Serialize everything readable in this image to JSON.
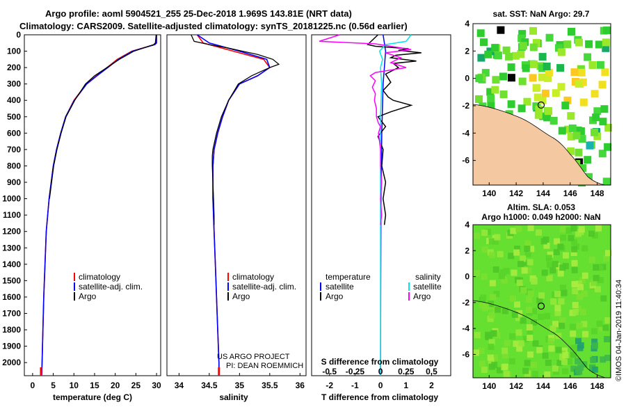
{
  "header": {
    "line1": "Argo profile: aoml 5904521_255 25-Dec-2018 1.969S 143.81E (NRT data)",
    "line2": "Climatology: CARS2009. Satellite-adjusted climatology: synTS_20181225.nc (0.56d earlier)"
  },
  "colors": {
    "climatology": "#ff0000",
    "satellite": "#0000ff",
    "argo": "#000000",
    "sat_salinity": "#00e5ee",
    "argo_salinity": "#ff00ff",
    "land": "#f4c8a0"
  },
  "depth_axis": {
    "ticks": [
      0,
      100,
      200,
      300,
      400,
      500,
      600,
      700,
      800,
      900,
      1000,
      1100,
      1200,
      1300,
      1400,
      1500,
      1600,
      1700,
      1800,
      1900,
      2000
    ]
  },
  "chart_data": [
    {
      "type": "line",
      "xlabel": "temperature (deg C)",
      "x_ticks": [
        "0",
        "5",
        "10",
        "15",
        "20",
        "25",
        "30"
      ],
      "xlim": [
        -2,
        31
      ],
      "ylim": [
        2080,
        0
      ],
      "legend": [
        "climatology",
        "satellite-adj. clim.",
        "Argo"
      ],
      "series": [
        {
          "name": "climatology",
          "depth": [
            0,
            50,
            60,
            100,
            150,
            200,
            250,
            300,
            400,
            500,
            600,
            700,
            800,
            1000,
            1200,
            1400,
            1600,
            1800,
            2000,
            2080
          ],
          "values": [
            29.9,
            29.9,
            29.5,
            24.0,
            20.5,
            18.0,
            15.5,
            13.0,
            10.0,
            8.0,
            6.8,
            5.8,
            5.0,
            4.0,
            3.3,
            3.0,
            2.7,
            2.5,
            2.3,
            2.2
          ]
        },
        {
          "name": "satellite-adj. clim.",
          "depth": [
            0,
            50,
            60,
            100,
            150,
            200,
            250,
            300,
            400,
            500,
            600,
            700,
            800,
            1000,
            1200,
            1400,
            1600,
            1800,
            2000,
            2080
          ],
          "values": [
            30.0,
            30.0,
            29.6,
            24.2,
            20.8,
            18.2,
            15.6,
            13.1,
            10.1,
            8.0,
            6.8,
            5.8,
            5.0,
            4.0,
            3.3,
            3.0,
            2.7,
            2.5,
            2.3,
            2.2
          ]
        },
        {
          "name": "Argo",
          "depth": [
            0,
            50,
            60,
            100,
            150,
            200,
            250,
            300,
            400,
            500,
            600,
            700,
            800,
            900,
            1000
          ],
          "values": [
            29.9,
            29.7,
            29.3,
            24.5,
            21.0,
            18.0,
            15.0,
            12.8,
            10.2,
            8.1,
            6.9,
            5.9,
            5.1,
            4.6,
            4.1
          ]
        }
      ]
    },
    {
      "type": "line",
      "xlabel": "salinity",
      "x_ticks": [
        "34",
        "34.5",
        "35",
        "35.5",
        "36"
      ],
      "xlim": [
        33.8,
        36.1
      ],
      "ylim": [
        2080,
        0
      ],
      "legend": [
        "climatology",
        "satellite-adj. clim.",
        "Argo"
      ],
      "series": [
        {
          "name": "climatology",
          "depth": [
            0,
            50,
            100,
            150,
            200,
            250,
            300,
            400,
            500,
            600,
            700,
            800,
            1000,
            1200,
            1400,
            1600,
            1800,
            2000,
            2080
          ],
          "values": [
            34.3,
            34.4,
            34.9,
            35.4,
            35.5,
            35.3,
            35.0,
            34.82,
            34.72,
            34.64,
            34.58,
            34.56,
            34.56,
            34.58,
            34.6,
            34.62,
            34.64,
            34.66,
            34.66
          ]
        },
        {
          "name": "satellite-adj. clim.",
          "depth": [
            0,
            50,
            100,
            150,
            200,
            250,
            300,
            400,
            500,
            600,
            700,
            800,
            1000,
            1200,
            1400,
            1600,
            1800,
            2000,
            2080
          ],
          "values": [
            34.3,
            34.5,
            35.0,
            35.45,
            35.5,
            35.3,
            35.0,
            34.82,
            34.72,
            34.64,
            34.58,
            34.56,
            34.56,
            34.58,
            34.6,
            34.62,
            34.64,
            34.66,
            34.66
          ]
        },
        {
          "name": "Argo",
          "depth": [
            0,
            40,
            60,
            80,
            100,
            120,
            150,
            180,
            200,
            250,
            300,
            400,
            500,
            600,
            700,
            740,
            800,
            900,
            1000,
            1100,
            1160
          ],
          "values": [
            34.2,
            34.25,
            34.5,
            34.8,
            35.05,
            35.3,
            35.55,
            35.65,
            35.5,
            35.2,
            34.98,
            34.82,
            34.7,
            34.62,
            34.56,
            34.55,
            34.55,
            34.56,
            34.57,
            34.58,
            34.58
          ]
        }
      ]
    },
    {
      "type": "line",
      "xlabel": "T difference from climatology",
      "x_ticks": [
        "-2",
        "-1",
        "0",
        "1",
        "2"
      ],
      "x2_label": "S difference from climatology",
      "x2_ticks": [
        "-0.5",
        "-0.25",
        "0",
        "0.25",
        "0.5"
      ],
      "xlim": [
        -2.7,
        2.75
      ],
      "ylim": [
        2080,
        0
      ],
      "legend_left_title": "temperature",
      "legend_left": [
        "satellite",
        "Argo"
      ],
      "legend_right_title": "salinity",
      "legend_right": [
        "satellite",
        "Argo"
      ],
      "series": [
        {
          "name": "T satellite",
          "depth": [
            0,
            100,
            300,
            600,
            1000,
            1500,
            2080
          ],
          "values": [
            0.1,
            0.2,
            0.1,
            0.05,
            0.02,
            0.01,
            0.0
          ]
        },
        {
          "name": "T Argo",
          "depth": [
            0,
            60,
            70,
            85,
            95,
            110,
            125,
            140,
            160,
            175,
            200,
            240,
            290,
            340,
            380,
            400,
            430,
            470,
            500,
            560,
            620,
            700,
            800,
            900,
            1000,
            1100,
            1160
          ],
          "values": [
            -0.1,
            -0.5,
            -0.2,
            1.1,
            0.7,
            1.6,
            0.6,
            0.4,
            1.4,
            0.5,
            0.7,
            0.2,
            0.4,
            0.1,
            0.3,
            0.5,
            1.2,
            0.4,
            -0.1,
            0.2,
            -0.1,
            0.1,
            0.05,
            0.2,
            0.1,
            0.2,
            0.15
          ]
        },
        {
          "name": "S satellite",
          "depth": [
            0,
            40,
            60,
            100,
            150,
            200,
            300,
            500,
            1000,
            1500,
            2000,
            2080
          ],
          "values": [
            0.3,
            0.25,
            0.05,
            -0.01,
            0.02,
            0.0,
            0.01,
            0.0,
            0.0,
            0.0,
            0.0,
            0.0
          ]
        },
        {
          "name": "S Argo",
          "depth": [
            0,
            40,
            55,
            70,
            90,
            110,
            140,
            170,
            200,
            230,
            250,
            280,
            320,
            360,
            400,
            450,
            500,
            540,
            560,
            600,
            700,
            800,
            900,
            1000,
            1100,
            1160
          ],
          "values": [
            -0.4,
            -0.6,
            -0.05,
            0.1,
            0.3,
            0.05,
            0.2,
            0.1,
            0.25,
            -0.05,
            -0.1,
            -0.05,
            -0.08,
            -0.05,
            -0.06,
            -0.04,
            -0.04,
            -0.02,
            0.0,
            -0.02,
            0.0,
            0.0,
            0.01,
            0.0,
            0.01,
            0.0
          ]
        }
      ]
    },
    {
      "type": "heatmap",
      "title": "sat. SST: NaN Argo: 29.7",
      "x_ticks": [
        "140",
        "142",
        "144",
        "146",
        "148"
      ],
      "y_ticks": [
        "4",
        "2",
        "0",
        "-2",
        "-4",
        "-6"
      ],
      "xlim": [
        138.8,
        149.0
      ],
      "ylim": [
        -7.8,
        4.0
      ],
      "float_position": [
        143.81,
        -1.969
      ]
    },
    {
      "type": "heatmap",
      "title_line1": "Altim. SLA: 0.053",
      "title_line2": "Argo h1000: 0.049 h2000: NaN",
      "x_ticks": [
        "140",
        "142",
        "144",
        "146",
        "148"
      ],
      "y_ticks": [
        "4",
        "2",
        "0",
        "-2",
        "-4",
        "-6"
      ],
      "xlim": [
        138.8,
        149.0
      ],
      "ylim": [
        -7.8,
        4.0
      ],
      "float_position": [
        143.81,
        -1.969
      ]
    }
  ],
  "credits": {
    "project": "US ARGO PROJECT",
    "pi": "PI: DEAN ROEMMICH",
    "stamp": "©IMOS 04-Jan-2019 11:40:34"
  }
}
